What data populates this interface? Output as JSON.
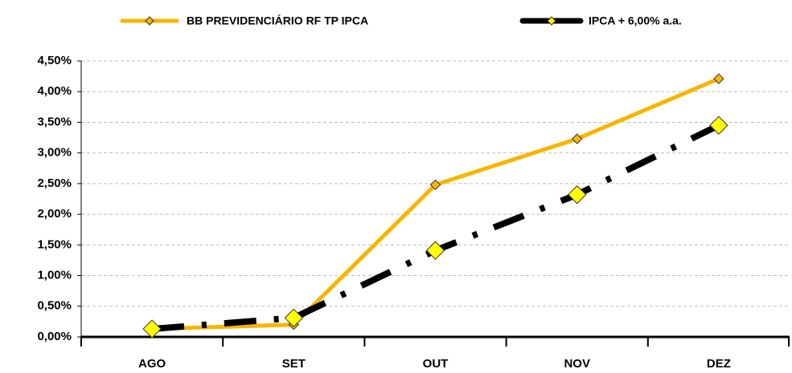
{
  "chart_data": {
    "type": "line",
    "categories": [
      "AGO",
      "SET",
      "OUT",
      "NOV",
      "DEZ"
    ],
    "series": [
      {
        "name": "BB PREVIDENCIÁRIO RF TP IPCA",
        "color": "#F7B500",
        "marker_color": "#F7B500",
        "line_style": "solid",
        "marker": "diamond",
        "values": [
          0.13,
          0.2,
          2.48,
          3.23,
          4.21
        ]
      },
      {
        "name": "IPCA + 6,00% a.a.",
        "color": "#000000",
        "marker_color": "#FFFF00",
        "line_style": "dashdot",
        "marker": "diamond",
        "values": [
          0.13,
          0.31,
          1.41,
          2.32,
          3.45
        ]
      }
    ],
    "ylim": [
      0,
      4.5
    ],
    "yticks": [
      {
        "value": 0,
        "label": "0,00%"
      },
      {
        "value": 0.5,
        "label": "0,50%"
      },
      {
        "value": 1,
        "label": "1,00%"
      },
      {
        "value": 1.5,
        "label": "1,50%"
      },
      {
        "value": 2,
        "label": "2,00%"
      },
      {
        "value": 2.5,
        "label": "2,50%"
      },
      {
        "value": 3,
        "label": "3,00%"
      },
      {
        "value": 3.5,
        "label": "3,50%"
      },
      {
        "value": 4,
        "label": "4,00%"
      },
      {
        "value": 4.5,
        "label": "4,50%"
      }
    ],
    "grid": true,
    "legend": "top"
  }
}
